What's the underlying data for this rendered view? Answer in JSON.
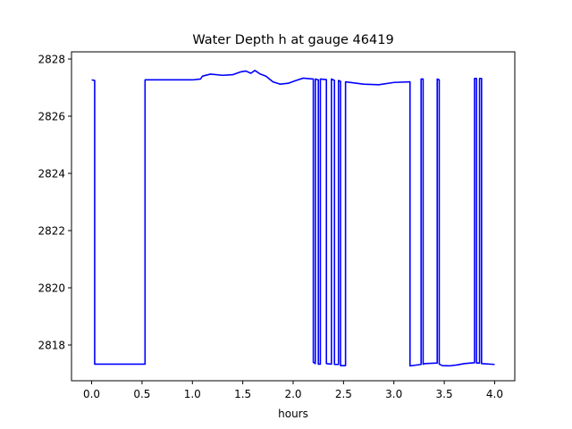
{
  "chart_data": {
    "type": "line",
    "title": "Water Depth h at gauge 46419",
    "xlabel": "hours",
    "ylabel": "",
    "xlim": [
      -0.2,
      4.2
    ],
    "ylim": [
      2816.75,
      2828.25
    ],
    "xticks": [
      0.0,
      0.5,
      1.0,
      1.5,
      2.0,
      2.5,
      3.0,
      3.5,
      4.0
    ],
    "xtick_labels": [
      "0.0",
      "0.5",
      "1.0",
      "1.5",
      "2.0",
      "2.5",
      "3.0",
      "3.5",
      "4.0"
    ],
    "yticks": [
      2818,
      2820,
      2822,
      2824,
      2826,
      2828
    ],
    "ytick_labels": [
      "2818",
      "2820",
      "2822",
      "2824",
      "2826",
      "2828"
    ],
    "grid": false,
    "line_color": "#0000ff",
    "series": [
      {
        "name": "",
        "x": [
          0.0,
          0.03,
          0.03,
          0.53,
          0.53,
          1.0,
          1.08,
          1.1,
          1.18,
          1.3,
          1.4,
          1.48,
          1.53,
          1.58,
          1.62,
          1.67,
          1.73,
          1.8,
          1.87,
          1.95,
          2.03,
          2.1,
          2.2,
          2.2,
          2.22,
          2.22,
          2.25,
          2.25,
          2.27,
          2.27,
          2.33,
          2.33,
          2.38,
          2.38,
          2.41,
          2.41,
          2.45,
          2.45,
          2.47,
          2.47,
          2.52,
          2.52,
          2.7,
          2.85,
          3.0,
          3.16,
          3.16,
          3.27,
          3.27,
          3.29,
          3.29,
          3.31,
          3.31,
          3.43,
          3.43,
          3.45,
          3.45,
          3.48,
          3.55,
          3.62,
          3.7,
          3.8,
          3.8,
          3.82,
          3.82,
          3.85,
          3.85,
          3.87,
          3.87,
          4.0
        ],
        "y": [
          2827.27,
          2827.25,
          2817.33,
          2817.33,
          2827.27,
          2827.27,
          2827.3,
          2827.4,
          2827.47,
          2827.43,
          2827.45,
          2827.55,
          2827.58,
          2827.5,
          2827.6,
          2827.48,
          2827.4,
          2827.2,
          2827.12,
          2827.15,
          2827.25,
          2827.33,
          2827.3,
          2817.4,
          2817.35,
          2827.3,
          2827.27,
          2817.33,
          2817.33,
          2827.3,
          2827.28,
          2817.35,
          2817.33,
          2827.3,
          2827.25,
          2817.32,
          2817.32,
          2827.25,
          2827.22,
          2817.28,
          2817.28,
          2827.2,
          2827.12,
          2827.1,
          2827.18,
          2827.2,
          2817.27,
          2817.32,
          2827.3,
          2827.3,
          2817.33,
          2817.35,
          2817.35,
          2817.37,
          2827.3,
          2827.27,
          2817.33,
          2817.28,
          2817.27,
          2817.3,
          2817.35,
          2817.38,
          2827.32,
          2827.32,
          2817.37,
          2817.37,
          2827.32,
          2827.32,
          2817.35,
          2817.32
        ]
      }
    ]
  }
}
